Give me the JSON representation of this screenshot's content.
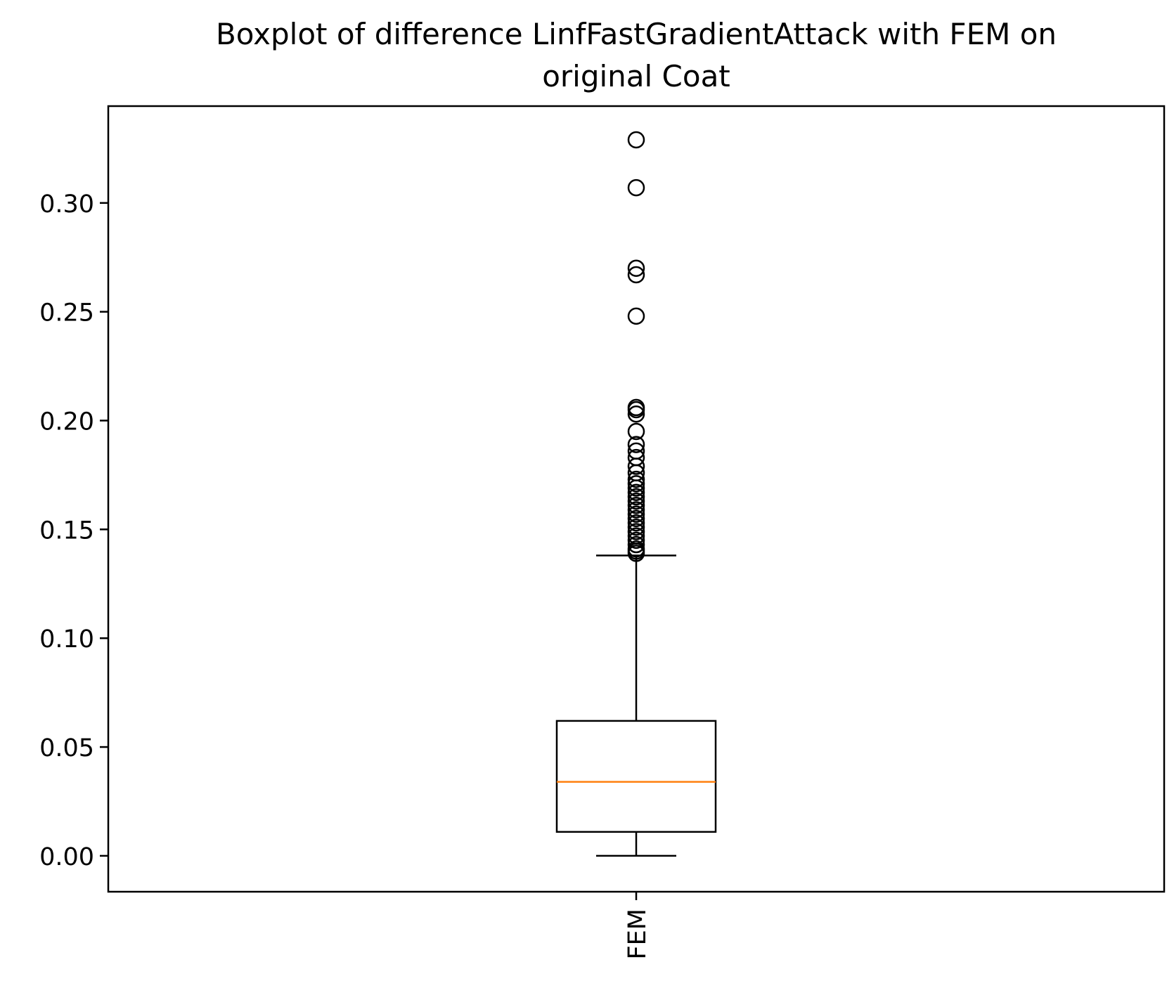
{
  "chart_data": {
    "type": "boxplot",
    "title": "Boxplot of difference LinfFastGradientAttack with FEM on original Coat",
    "title_lines": [
      "Boxplot of difference LinfFastGradientAttack with FEM on",
      "original Coat"
    ],
    "xlabel": "",
    "ylabel": "",
    "ylim": [
      -0.0165,
      0.3445
    ],
    "yticks": [
      0.0,
      0.05,
      0.1,
      0.15,
      0.2,
      0.25,
      0.3
    ],
    "ytick_labels": [
      "0.00",
      "0.05",
      "0.10",
      "0.15",
      "0.20",
      "0.25",
      "0.30"
    ],
    "categories": [
      "FEM"
    ],
    "xtick_rotation": "vertical",
    "boxes": [
      {
        "label": "FEM",
        "whisker_low": 0.0,
        "q1": 0.011,
        "median": 0.034,
        "q3": 0.062,
        "whisker_high": 0.138,
        "outliers": [
          0.139,
          0.14,
          0.141,
          0.143,
          0.145,
          0.147,
          0.149,
          0.151,
          0.153,
          0.155,
          0.157,
          0.159,
          0.161,
          0.163,
          0.165,
          0.167,
          0.169,
          0.171,
          0.173,
          0.176,
          0.179,
          0.183,
          0.186,
          0.189,
          0.195,
          0.203,
          0.205,
          0.206,
          0.248,
          0.267,
          0.27,
          0.307,
          0.329
        ]
      }
    ],
    "grid": false,
    "legend": "none",
    "colors": {
      "box": "#000000",
      "median": "#ff7f0e",
      "outlier_edge": "#000000",
      "background": "#ffffff"
    }
  }
}
